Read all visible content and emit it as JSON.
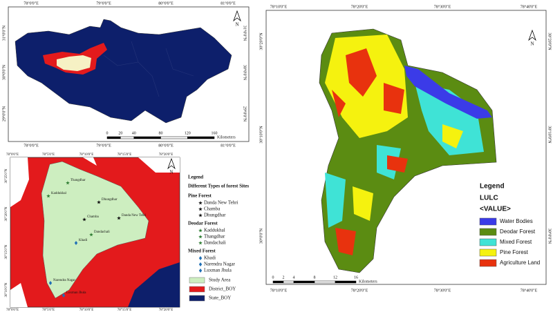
{
  "location_map": {
    "top_coords": [
      "78°0'0\"E",
      "79°0'0\"E",
      "80°0'0\"E",
      "81°0'0\"E"
    ],
    "bottom_coords": [
      "78°0'0\"E",
      "79°0'0\"E",
      "80°0'0\"E",
      "81°0'0\"E"
    ],
    "left_coords": [
      "31°0'0\"N",
      "30°0'0\"N",
      "29°0'0\"N"
    ],
    "right_coords": [
      "31°0'0\"N",
      "30°0'0\"N",
      "29°0'0\"N"
    ],
    "scale": {
      "ticks": [
        0,
        20,
        40,
        80,
        120,
        160
      ],
      "unit": "Kilometers"
    },
    "north": "N"
  },
  "site_map": {
    "top_coords": [
      "78°0'0\"E",
      "78°5'0\"E",
      "78°10'0\"E",
      "78°15'0\"E",
      "78°20'0\"E"
    ],
    "bottom_coords": [
      "78°0'0\"E",
      "78°5'0\"E",
      "78°10'0\"E",
      "78°15'0\"E",
      "78°20'0\"E"
    ],
    "left_coords": [
      "30°25'0\"N",
      "30°20'0\"N",
      "30°15'0\"N",
      "30°10'0\"N"
    ],
    "sites": [
      "Thangdhar",
      "Kaddukhal",
      "Dhungdhar",
      "Chamba",
      "Danda New Tehri",
      "Dandachali",
      "Khadi",
      "Narendra Nagar",
      "Luxman Jhula"
    ],
    "north": "N"
  },
  "site_legend": {
    "title": "Legend",
    "subtitle": "Different Types of forest Sites",
    "groups": [
      {
        "name": "Pine Forest",
        "items": [
          "Danda New Tehri",
          "Chamba",
          "Dhungdhar"
        ]
      },
      {
        "name": "Deodar Forest",
        "items": [
          "Kaddukhal",
          "Thangdhar",
          "Dandachali"
        ]
      },
      {
        "name": "Mixed Forest",
        "items": [
          "Khadi",
          "Narendra Nagar",
          "Luxman Jhula"
        ]
      }
    ],
    "boundaries": [
      "Study Area",
      "District_BOY",
      "State_BOY"
    ]
  },
  "lulc_map": {
    "top_coords": [
      "78°10'0\"E",
      "78°20'0\"E",
      "78°30'0\"E",
      "78°40'0\"E"
    ],
    "bottom_coords": [
      "78°10'0\"E",
      "78°20'0\"E",
      "78°30'0\"E",
      "78°40'0\"E"
    ],
    "left_coords": [
      "30°20'0\"N",
      "30°10'0\"N",
      "30°0'0\"N"
    ],
    "right_coords": [
      "30°20'0\"N",
      "30°10'0\"N",
      "30°0'0\"N"
    ],
    "scale": {
      "ticks": [
        0,
        2,
        4,
        8,
        12,
        16
      ],
      "unit": "Kilometers"
    },
    "north": "N",
    "legend": {
      "title": "Legend",
      "field": "LULC",
      "value": "<VALUE>",
      "classes": [
        "Water Bodies",
        "Deodar Forest",
        "Mixed Forest",
        "Pine Forest",
        "Agriculture Land"
      ]
    }
  }
}
